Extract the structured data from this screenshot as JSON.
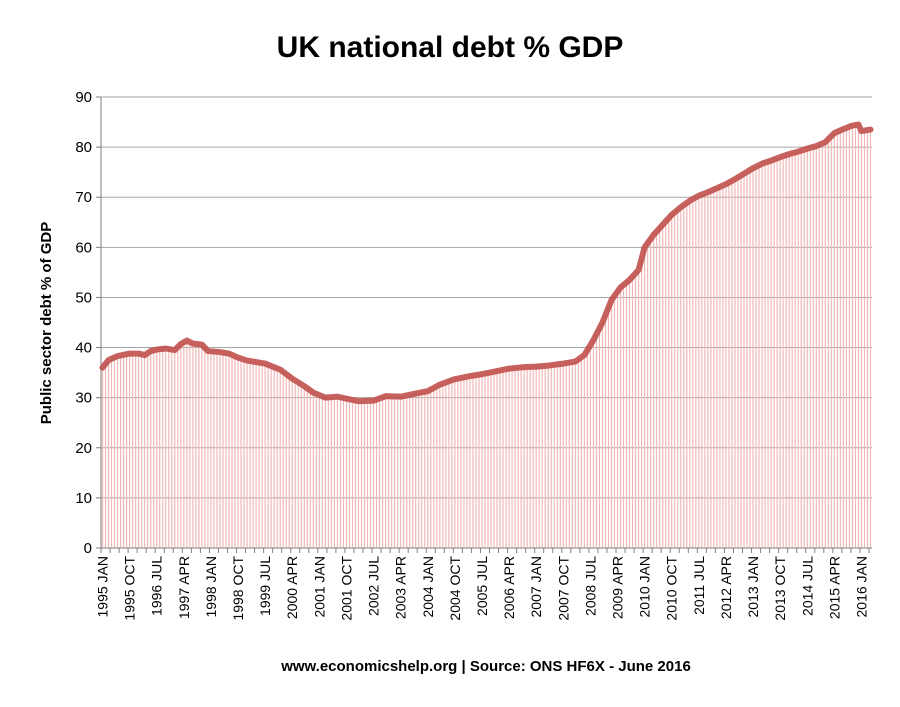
{
  "chart_data": {
    "type": "area",
    "title": "UK national debt % GDP",
    "ylabel": "Public sector debt % of GDP",
    "xlabel": "",
    "source": "www.economicshelp.org | Source: ONS HF6X - June 2016",
    "ylim": [
      0,
      90
    ],
    "yticks": [
      0,
      10,
      20,
      30,
      40,
      50,
      60,
      70,
      80,
      90
    ],
    "grid": true,
    "x_range": [
      "1995-01",
      "2016-04"
    ],
    "x_tick_labels": [
      "1995 JAN",
      "1995 OCT",
      "1996 JUL",
      "1997 APR",
      "1998 JAN",
      "1998 OCT",
      "1999 JUL",
      "2000 APR",
      "2001 JAN",
      "2001 OCT",
      "2002 JUL",
      "2003 APR",
      "2004 JAN",
      "2004 OCT",
      "2005 JUL",
      "2006 APR",
      "2007 JAN",
      "2007 OCT",
      "2008 JUL",
      "2009 APR",
      "2010 JAN",
      "2010 OCT",
      "2011 JUL",
      "2012 APR",
      "2013 JAN",
      "2013 OCT",
      "2014 JUL",
      "2015 APR",
      "2016 JAN"
    ],
    "series": [
      {
        "color": "#c0504d",
        "points": [
          {
            "x": "1995-01",
            "y": 36.0
          },
          {
            "x": "1995-03",
            "y": 37.5
          },
          {
            "x": "1995-06",
            "y": 38.3
          },
          {
            "x": "1995-10",
            "y": 38.8
          },
          {
            "x": "1996-01",
            "y": 38.8
          },
          {
            "x": "1996-03",
            "y": 38.5
          },
          {
            "x": "1996-05",
            "y": 39.3
          },
          {
            "x": "1996-07",
            "y": 39.6
          },
          {
            "x": "1996-10",
            "y": 39.8
          },
          {
            "x": "1997-01",
            "y": 39.5
          },
          {
            "x": "1997-03",
            "y": 40.7
          },
          {
            "x": "1997-05",
            "y": 41.4
          },
          {
            "x": "1997-07",
            "y": 40.8
          },
          {
            "x": "1997-10",
            "y": 40.6
          },
          {
            "x": "1997-12",
            "y": 39.3
          },
          {
            "x": "1998-04",
            "y": 39.1
          },
          {
            "x": "1998-07",
            "y": 38.8
          },
          {
            "x": "1998-10",
            "y": 38.0
          },
          {
            "x": "1999-01",
            "y": 37.4
          },
          {
            "x": "1999-07",
            "y": 36.8
          },
          {
            "x": "1999-12",
            "y": 35.6
          },
          {
            "x": "2000-04",
            "y": 33.8
          },
          {
            "x": "2000-08",
            "y": 32.3
          },
          {
            "x": "2000-11",
            "y": 31.0
          },
          {
            "x": "2001-03",
            "y": 30.0
          },
          {
            "x": "2001-07",
            "y": 30.2
          },
          {
            "x": "2001-10",
            "y": 29.8
          },
          {
            "x": "2002-02",
            "y": 29.3
          },
          {
            "x": "2002-07",
            "y": 29.4
          },
          {
            "x": "2002-11",
            "y": 30.3
          },
          {
            "x": "2003-04",
            "y": 30.2
          },
          {
            "x": "2003-08",
            "y": 30.7
          },
          {
            "x": "2004-01",
            "y": 31.3
          },
          {
            "x": "2004-05",
            "y": 32.6
          },
          {
            "x": "2004-10",
            "y": 33.7
          },
          {
            "x": "2005-03",
            "y": 34.3
          },
          {
            "x": "2005-07",
            "y": 34.7
          },
          {
            "x": "2005-12",
            "y": 35.3
          },
          {
            "x": "2006-04",
            "y": 35.8
          },
          {
            "x": "2006-09",
            "y": 36.1
          },
          {
            "x": "2007-01",
            "y": 36.2
          },
          {
            "x": "2007-05",
            "y": 36.4
          },
          {
            "x": "2007-10",
            "y": 36.8
          },
          {
            "x": "2008-02",
            "y": 37.2
          },
          {
            "x": "2008-05",
            "y": 38.5
          },
          {
            "x": "2008-08",
            "y": 41.5
          },
          {
            "x": "2008-11",
            "y": 45.0
          },
          {
            "x": "2009-02",
            "y": 49.5
          },
          {
            "x": "2009-05",
            "y": 52.0
          },
          {
            "x": "2009-08",
            "y": 53.5
          },
          {
            "x": "2009-11",
            "y": 55.5
          },
          {
            "x": "2010-01",
            "y": 60.0
          },
          {
            "x": "2010-04",
            "y": 62.5
          },
          {
            "x": "2010-07",
            "y": 64.5
          },
          {
            "x": "2010-10",
            "y": 66.5
          },
          {
            "x": "2011-01",
            "y": 68.0
          },
          {
            "x": "2011-04",
            "y": 69.3
          },
          {
            "x": "2011-07",
            "y": 70.3
          },
          {
            "x": "2011-10",
            "y": 71.0
          },
          {
            "x": "2012-01",
            "y": 71.8
          },
          {
            "x": "2012-04",
            "y": 72.6
          },
          {
            "x": "2012-07",
            "y": 73.6
          },
          {
            "x": "2012-10",
            "y": 74.7
          },
          {
            "x": "2013-01",
            "y": 75.8
          },
          {
            "x": "2013-04",
            "y": 76.7
          },
          {
            "x": "2013-07",
            "y": 77.3
          },
          {
            "x": "2013-10",
            "y": 78.0
          },
          {
            "x": "2014-01",
            "y": 78.6
          },
          {
            "x": "2014-04",
            "y": 79.1
          },
          {
            "x": "2014-07",
            "y": 79.7
          },
          {
            "x": "2014-10",
            "y": 80.2
          },
          {
            "x": "2015-01",
            "y": 81.0
          },
          {
            "x": "2015-04",
            "y": 82.8
          },
          {
            "x": "2015-07",
            "y": 83.6
          },
          {
            "x": "2015-10",
            "y": 84.3
          },
          {
            "x": "2015-12",
            "y": 84.5
          },
          {
            "x": "2016-01",
            "y": 83.2
          },
          {
            "x": "2016-04",
            "y": 83.5
          }
        ]
      }
    ]
  }
}
